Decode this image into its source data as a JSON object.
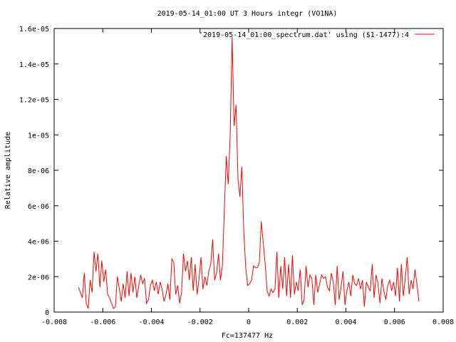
{
  "chart_data": {
    "type": "line",
    "title": "2019-05-14_01:00 UT 3 Hours integr (VO1NA)",
    "xlabel": "Fc=137477 Hz",
    "ylabel": "Relative amplitude",
    "xlim": [
      -0.008,
      0.008
    ],
    "ylim": [
      0,
      1.6e-05
    ],
    "x_ticks": [
      -0.008,
      -0.006,
      -0.004,
      -0.002,
      0,
      0.002,
      0.004,
      0.006,
      0.008
    ],
    "x_tick_labels": [
      "-0.008",
      "-0.006",
      "-0.004",
      "-0.002",
      "0",
      "0.002",
      "0.004",
      "0.006",
      "0.008"
    ],
    "y_ticks": [
      0,
      2e-06,
      4e-06,
      6e-06,
      8e-06,
      1e-05,
      1.2e-05,
      1.4e-05,
      1.6e-05
    ],
    "y_tick_labels": [
      "0",
      "2e-06",
      "4e-06",
      "6e-06",
      "8e-06",
      "1e-05",
      "1.2e-05",
      "1.4e-05",
      "1.6e-05"
    ],
    "grid": false,
    "legend_position": "top-right",
    "series": [
      {
        "name": "'2019-05-14_01:00_spectrum.dat' using ($1-1477):4",
        "color": "#ff0000",
        "x": [
          -0.007,
          -0.00692,
          -0.00684,
          -0.00676,
          -0.00668,
          -0.0066,
          -0.00652,
          -0.00644,
          -0.00636,
          -0.00628,
          -0.0062,
          -0.00612,
          -0.00604,
          -0.00596,
          -0.00588,
          -0.0058,
          -0.00572,
          -0.00564,
          -0.00556,
          -0.00548,
          -0.0054,
          -0.00532,
          -0.00524,
          -0.00516,
          -0.00508,
          -0.005,
          -0.00492,
          -0.00484,
          -0.00476,
          -0.00468,
          -0.0046,
          -0.00452,
          -0.00444,
          -0.00436,
          -0.00428,
          -0.0042,
          -0.00412,
          -0.00404,
          -0.00396,
          -0.00388,
          -0.0038,
          -0.00372,
          -0.00364,
          -0.00356,
          -0.00348,
          -0.0034,
          -0.00332,
          -0.00324,
          -0.00316,
          -0.00308,
          -0.003,
          -0.00292,
          -0.00284,
          -0.00276,
          -0.00268,
          -0.0026,
          -0.00252,
          -0.00244,
          -0.00236,
          -0.00228,
          -0.0022,
          -0.00212,
          -0.00204,
          -0.00196,
          -0.00188,
          -0.0018,
          -0.00172,
          -0.00164,
          -0.00156,
          -0.00148,
          -0.0014,
          -0.00132,
          -0.00124,
          -0.00116,
          -0.00108,
          -0.001,
          -0.00092,
          -0.00084,
          -0.00076,
          -0.00068,
          -0.0006,
          -0.00052,
          -0.00044,
          -0.00036,
          -0.00028,
          -0.0002,
          -0.00012,
          -4e-05,
          4e-05,
          0.00012,
          0.0002,
          0.00028,
          0.00036,
          0.00044,
          0.00052,
          0.0006,
          0.00068,
          0.00076,
          0.00084,
          0.00092,
          0.001,
          0.00108,
          0.00116,
          0.00124,
          0.00132,
          0.0014,
          0.00148,
          0.00156,
          0.00164,
          0.00172,
          0.0018,
          0.00188,
          0.00196,
          0.00204,
          0.00212,
          0.0022,
          0.00228,
          0.00236,
          0.00244,
          0.00252,
          0.0026,
          0.00268,
          0.00276,
          0.00284,
          0.00292,
          0.003,
          0.00308,
          0.00316,
          0.00324,
          0.00332,
          0.0034,
          0.00348,
          0.00356,
          0.00364,
          0.00372,
          0.0038,
          0.00388,
          0.00396,
          0.00404,
          0.00412,
          0.0042,
          0.00428,
          0.00436,
          0.00444,
          0.00452,
          0.0046,
          0.00468,
          0.00476,
          0.00484,
          0.00492,
          0.005,
          0.00508,
          0.00516,
          0.00524,
          0.00532,
          0.0054,
          0.00548,
          0.00556,
          0.00564,
          0.00572,
          0.0058,
          0.00588,
          0.00596,
          0.00604,
          0.00612,
          0.0062,
          0.00628,
          0.00636,
          0.00644,
          0.00652,
          0.0066,
          0.00668,
          0.00676,
          0.00684,
          0.00692,
          0.007
        ],
        "y": [
          1.4e-06,
          1.1e-06,
          8e-07,
          2.2e-06,
          5e-07,
          2e-07,
          1.8e-06,
          1.1e-06,
          3.4e-06,
          2.3e-06,
          3.3e-06,
          1.4e-06,
          2.9e-06,
          1.7e-06,
          2.4e-06,
          1e-06,
          8e-07,
          5e-07,
          2e-07,
          3e-07,
          2e-06,
          1.3e-06,
          6e-07,
          1.6e-06,
          8e-07,
          2.3e-06,
          9e-07,
          2.2e-06,
          1.1e-06,
          2e-06,
          8e-07,
          1.5e-06,
          2.1e-06,
          1.6e-06,
          1.9e-06,
          5e-07,
          7e-07,
          1.5e-06,
          1.8e-06,
          1.2e-06,
          1.7e-06,
          1e-06,
          1.7e-06,
          1.3e-06,
          6e-07,
          1e-06,
          1.6e-06,
          7e-07,
          3e-06,
          2.8e-06,
          1e-06,
          1.5e-06,
          5e-07,
          1.1e-06,
          3.3e-06,
          2.3e-06,
          2.9e-06,
          1.8e-06,
          3.1e-06,
          1.2e-06,
          2.7e-06,
          1e-06,
          1.9e-06,
          3.1e-06,
          1.3e-06,
          2e-06,
          1.5e-06,
          2.3e-06,
          2.7e-06,
          4.1e-06,
          1.8e-06,
          2.2e-06,
          3.3e-06,
          1.8e-06,
          2.6e-06,
          5.8e-06,
          8.8e-06,
          7.2e-06,
          1e-05,
          1.55e-05,
          1.05e-05,
          1.17e-05,
          7.5e-06,
          6.5e-06,
          8.2e-06,
          4.5e-06,
          2.5e-06,
          1.5e-06,
          1.6e-06,
          1.8e-06,
          2.6e-06,
          2.5e-06,
          2.5e-06,
          2.8e-06,
          5.1e-06,
          3.9e-06,
          2.7e-06,
          1.2e-06,
          9e-07,
          1.3e-06,
          1.1e-06,
          1.3e-06,
          3.4e-06,
          8e-07,
          2.6e-06,
          1.3e-06,
          3.1e-06,
          9e-07,
          2.7e-06,
          8e-07,
          3.2e-06,
          1e-06,
          1.7e-06,
          1.2e-06,
          2.4e-06,
          4e-07,
          7e-07,
          2.6e-06,
          1.4e-06,
          2.1e-06,
          1.9e-06,
          4e-07,
          2.1e-06,
          1.1e-06,
          1.6e-06,
          2.1e-06,
          1.9e-06,
          2e-06,
          1.4e-06,
          1.2e-06,
          2.2e-06,
          1.7e-06,
          4e-07,
          2.6e-06,
          7e-07,
          1.4e-06,
          2.3e-06,
          4e-07,
          1.2e-06,
          1.7e-06,
          9e-07,
          2.1e-06,
          1.6e-06,
          1.5e-06,
          1.9e-06,
          1.3e-06,
          1.8e-06,
          3e-07,
          1.7e-06,
          1.4e-06,
          1.2e-06,
          2.7e-06,
          8e-07,
          2.1e-06,
          1.6e-06,
          5e-07,
          1.9e-06,
          1.2e-06,
          7e-07,
          1.5e-06,
          1.8e-06,
          1.2e-06,
          1.7e-06,
          9e-07,
          2.5e-06,
          6e-07,
          2.7e-06,
          9e-07,
          1.9e-06,
          3.1e-06,
          1e-06,
          1.8e-06,
          1.3e-06,
          2.4e-06,
          1.6e-06,
          6e-07
        ]
      }
    ]
  }
}
